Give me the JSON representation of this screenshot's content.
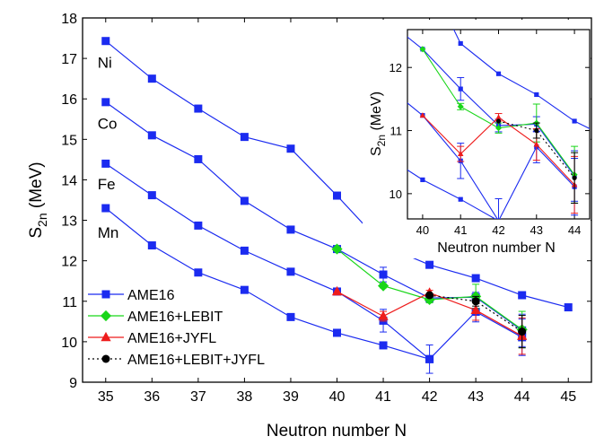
{
  "colors": {
    "AME16": "#1b2bf0",
    "AME16+LEBIT": "#19d619",
    "AME16+JYFL": "#ee1c1c",
    "AME16+LEBIT+JYFL": "#000000"
  },
  "chart_data": [
    {
      "type": "line",
      "xlabel": "Neutron number N",
      "ylabel": "S",
      "ylabel_sub": "2n",
      "ylabel_unit": "(MeV)",
      "xlim": [
        34.5,
        45.5
      ],
      "ylim": [
        9,
        18
      ],
      "xticks": [
        "35",
        "36",
        "37",
        "38",
        "39",
        "40",
        "41",
        "42",
        "43",
        "44",
        "45"
      ],
      "yticks": [
        "9",
        "10",
        "11",
        "12",
        "13",
        "14",
        "15",
        "16",
        "17",
        "18"
      ],
      "element_labels": [
        {
          "text": "Ni",
          "x": 35,
          "y": 16.9
        },
        {
          "text": "Co",
          "x": 35,
          "y": 15.4
        },
        {
          "text": "Fe",
          "x": 35,
          "y": 13.9
        },
        {
          "text": "Mn",
          "x": 35,
          "y": 12.7
        }
      ],
      "legend": {
        "placement": "bottom-left",
        "entries": [
          {
            "label": "AME16",
            "marker": "square",
            "style": "solid"
          },
          {
            "label": "AME16+LEBIT",
            "marker": "diamond",
            "style": "solid"
          },
          {
            "label": "AME16+JYFL",
            "marker": "triangle",
            "style": "solid"
          },
          {
            "label": "AME16+LEBIT+JYFL",
            "marker": "circle",
            "style": "dotted"
          }
        ]
      },
      "series": [
        {
          "group": "Ni",
          "legend": "AME16",
          "x": [
            35,
            36,
            37,
            38,
            39,
            40,
            41,
            42,
            43,
            44,
            45
          ],
          "y": [
            17.43,
            16.5,
            15.76,
            15.06,
            14.77,
            13.61,
            12.38,
            11.9,
            11.57,
            11.15,
            10.85
          ],
          "err": [
            0,
            0,
            0,
            0,
            0,
            0,
            0,
            0,
            0,
            0,
            0
          ]
        },
        {
          "group": "Co",
          "legend": "AME16",
          "x": [
            35,
            36,
            37,
            38,
            39,
            40,
            41,
            42,
            43,
            44
          ],
          "y": [
            15.92,
            15.1,
            14.51,
            13.48,
            12.77,
            12.29,
            11.66,
            11.08,
            11.1,
            10.28
          ],
          "err": [
            0,
            0,
            0,
            0,
            0,
            0,
            0.18,
            0.1,
            0.12,
            0.4
          ]
        },
        {
          "group": "Fe",
          "legend": "AME16",
          "x": [
            35,
            36,
            37,
            38,
            39,
            40,
            41,
            42,
            43,
            44
          ],
          "y": [
            14.4,
            13.62,
            12.87,
            12.25,
            11.73,
            11.24,
            10.52,
            9.57,
            10.74,
            10.11
          ],
          "err": [
            0,
            0,
            0,
            0,
            0,
            0,
            0.28,
            0.35,
            0.25,
            0.45
          ]
        },
        {
          "group": "Mn",
          "legend": "AME16",
          "x": [
            35,
            36,
            37,
            38,
            39,
            40,
            41,
            42
          ],
          "y": [
            13.3,
            12.38,
            11.71,
            11.28,
            10.61,
            10.22,
            9.91,
            9.57
          ],
          "err": [
            0,
            0,
            0,
            0,
            0,
            0,
            0,
            0
          ]
        },
        {
          "group": "Co",
          "legend": "AME16+LEBIT",
          "x": [
            40,
            41,
            42,
            43,
            44
          ],
          "y": [
            12.29,
            11.38,
            11.04,
            11.12,
            10.3
          ],
          "err": [
            0,
            0.05,
            0.08,
            0.3,
            0.45
          ]
        },
        {
          "group": "Fe",
          "legend": "AME16+JYFL",
          "x": [
            40,
            41,
            42,
            43,
            44
          ],
          "y": [
            11.24,
            10.63,
            11.21,
            10.78,
            10.14
          ],
          "err": [
            0,
            0.12,
            0.06,
            0.25,
            0.45
          ]
        },
        {
          "group": "Co",
          "legend": "AME16+LEBIT+JYFL",
          "x": [
            42,
            43,
            44
          ],
          "y": [
            11.15,
            11.0,
            10.25
          ],
          "err": [
            0,
            0.12,
            0.4
          ]
        }
      ]
    },
    {
      "type": "line",
      "placement": "inset top-right",
      "xlabel": "Neutron number N",
      "ylabel": "S",
      "ylabel_sub": "2n",
      "ylabel_unit": "(MeV)",
      "xlim": [
        39.6,
        44.4
      ],
      "ylim": [
        9.6,
        12.6
      ],
      "xticks": [
        "40",
        "41",
        "42",
        "43",
        "44"
      ],
      "yticks": [
        "10",
        "11",
        "12"
      ]
    }
  ]
}
